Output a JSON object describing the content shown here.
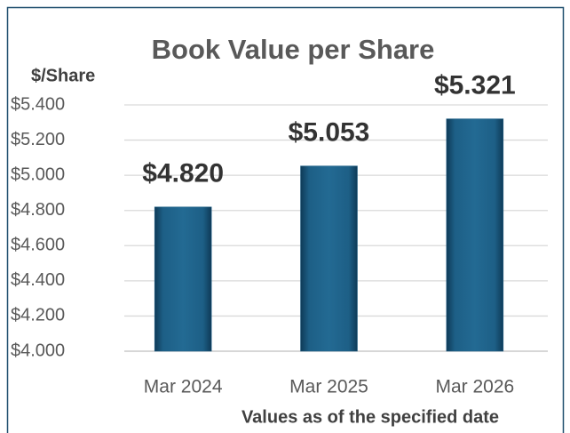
{
  "chart_data": {
    "type": "bar",
    "title": "Book Value per Share",
    "y_label": "$/Share",
    "x_label": "Values as of the specified date",
    "categories": [
      "Mar 2024",
      "Mar 2025",
      "Mar 2026"
    ],
    "values": [
      4.82,
      5.053,
      5.321
    ],
    "value_labels": [
      "$4.820",
      "$5.053",
      "$5.321"
    ],
    "color": "#1d5f86",
    "ylim": [
      4.0,
      5.4
    ],
    "yticks": [
      {
        "value": 4.0,
        "label": "$4.000"
      },
      {
        "value": 4.2,
        "label": "$4.200"
      },
      {
        "value": 4.4,
        "label": "$4.400"
      },
      {
        "value": 4.6,
        "label": "$4.600"
      },
      {
        "value": 4.8,
        "label": "$4.800"
      },
      {
        "value": 5.0,
        "label": "$5.000"
      },
      {
        "value": 5.2,
        "label": "$5.200"
      },
      {
        "value": 5.4,
        "label": "$5.400"
      }
    ],
    "grid": true
  }
}
